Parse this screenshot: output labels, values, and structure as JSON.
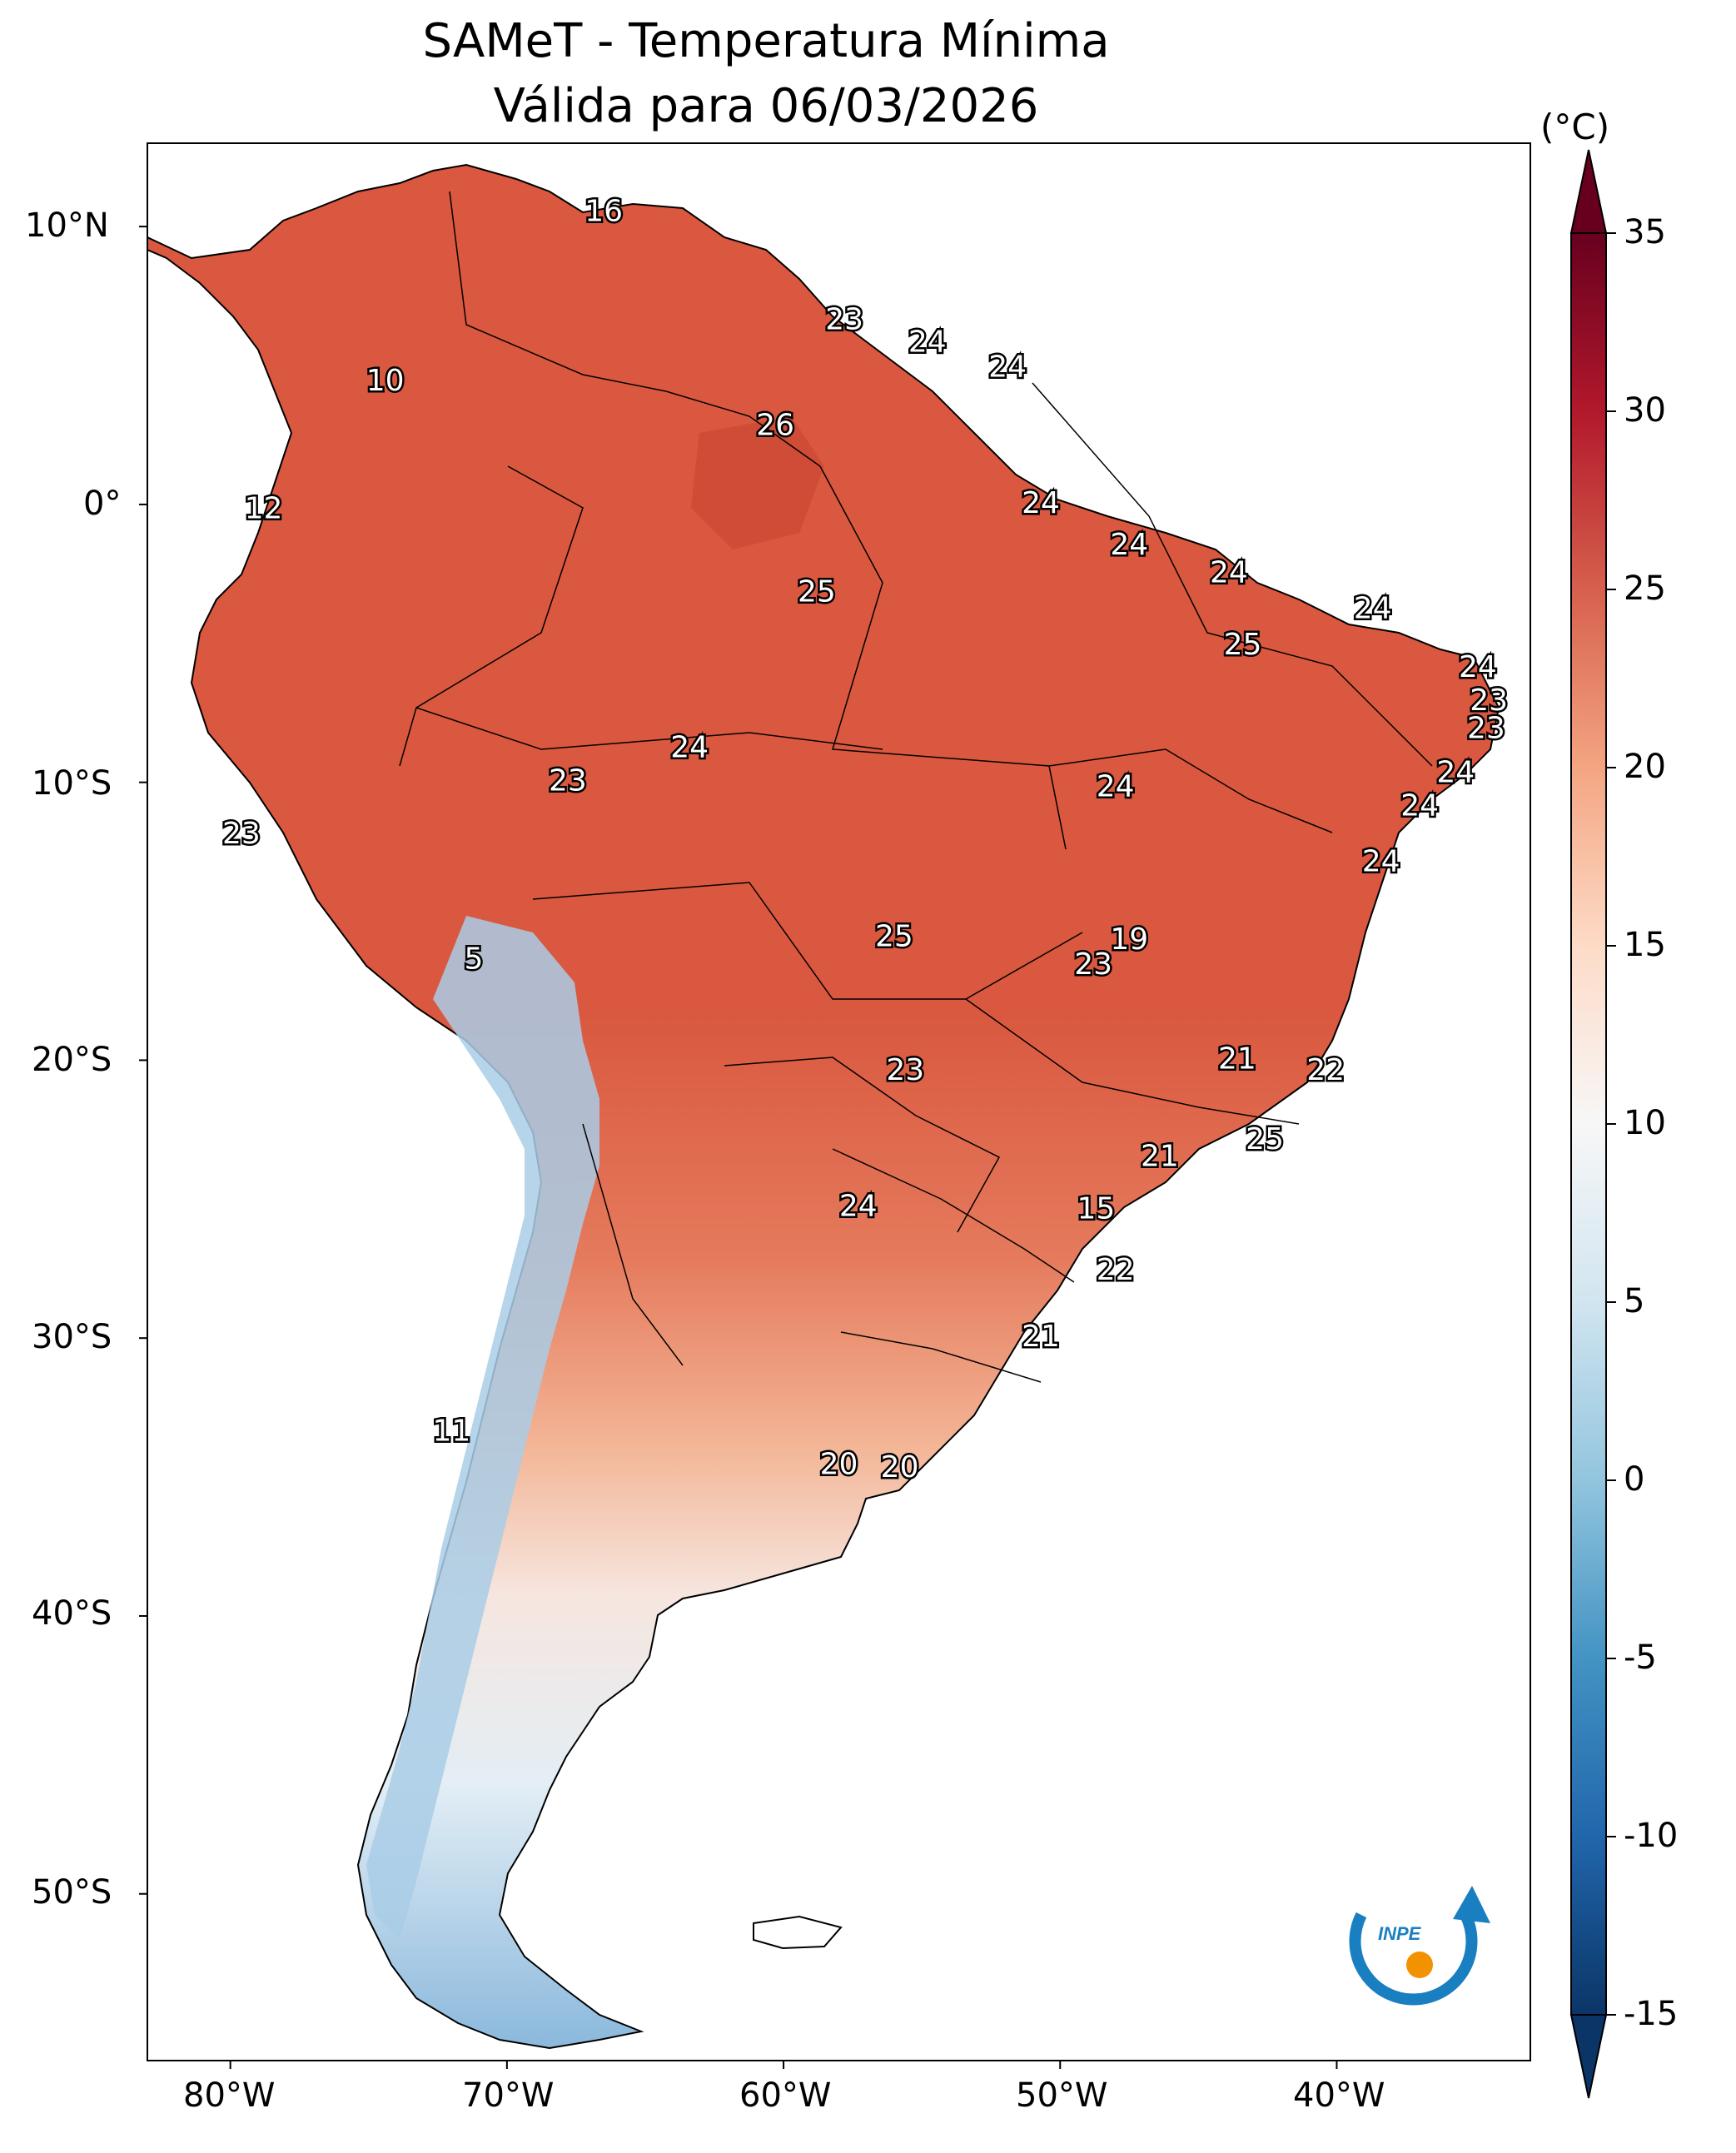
{
  "title": {
    "line1": "SAMeT - Temperatura Mínima",
    "line2": "Válida para 06/03/2026"
  },
  "colorbar": {
    "unit": "(°C)",
    "ticks": [
      "35",
      "30",
      "25",
      "20",
      "15",
      "10",
      "5",
      "0",
      "-5",
      "-10",
      "-15"
    ],
    "range": [
      -15,
      35
    ]
  },
  "axes": {
    "lat_labels": [
      "10°N",
      "0°",
      "10°S",
      "20°S",
      "30°S",
      "40°S",
      "50°S"
    ],
    "lon_labels": [
      "80°W",
      "70°W",
      "60°W",
      "50°W",
      "40°W"
    ]
  },
  "logo": {
    "text": "INPE"
  },
  "colors": {
    "warm": "#d9583f",
    "hot": "#c0392b",
    "mild": "#f0a27a",
    "neutral": "#f4f4f4",
    "cold": "#6fa8d6",
    "very_cold": "#2a6fb0",
    "logo_blue": "#1a7fc1",
    "logo_orange": "#f39200"
  },
  "chart_data": {
    "type": "map",
    "title": "SAMeT - Temperatura Mínima / Válida para 06/03/2026",
    "variable": "Minimum temperature (°C)",
    "lon_range": [
      -83,
      -33
    ],
    "lat_range": [
      -56,
      13
    ],
    "annotations": [
      {
        "lon": -66.5,
        "lat": 10.5,
        "value": "16"
      },
      {
        "lon": -74.4,
        "lat": 4.4,
        "value": "10"
      },
      {
        "lon": -57.8,
        "lat": 6.6,
        "value": "23"
      },
      {
        "lon": -54.8,
        "lat": 5.8,
        "value": "24"
      },
      {
        "lon": -51.9,
        "lat": 4.9,
        "value": "24"
      },
      {
        "lon": -60.3,
        "lat": 2.8,
        "value": "26"
      },
      {
        "lon": -78.8,
        "lat": -0.2,
        "value": "12"
      },
      {
        "lon": -50.7,
        "lat": 0.0,
        "value": "24"
      },
      {
        "lon": -47.5,
        "lat": -1.5,
        "value": "24"
      },
      {
        "lon": -43.9,
        "lat": -2.5,
        "value": "24"
      },
      {
        "lon": -58.8,
        "lat": -3.2,
        "value": "25"
      },
      {
        "lon": -38.7,
        "lat": -3.8,
        "value": "24"
      },
      {
        "lon": -43.4,
        "lat": -5.1,
        "value": "25"
      },
      {
        "lon": -34.9,
        "lat": -5.9,
        "value": "24"
      },
      {
        "lon": -34.5,
        "lat": -7.1,
        "value": "23"
      },
      {
        "lon": -34.6,
        "lat": -8.1,
        "value": "23"
      },
      {
        "lon": -63.4,
        "lat": -8.8,
        "value": "24"
      },
      {
        "lon": -35.7,
        "lat": -9.7,
        "value": "24"
      },
      {
        "lon": -67.8,
        "lat": -10.0,
        "value": "23"
      },
      {
        "lon": -48.0,
        "lat": -10.2,
        "value": "24"
      },
      {
        "lon": -37.0,
        "lat": -10.9,
        "value": "24"
      },
      {
        "lon": -79.6,
        "lat": -11.9,
        "value": "23"
      },
      {
        "lon": -38.4,
        "lat": -12.9,
        "value": "24"
      },
      {
        "lon": -56.0,
        "lat": -15.6,
        "value": "25"
      },
      {
        "lon": -47.5,
        "lat": -15.7,
        "value": "19"
      },
      {
        "lon": -48.8,
        "lat": -16.6,
        "value": "23"
      },
      {
        "lon": -71.2,
        "lat": -16.4,
        "value": "5"
      },
      {
        "lon": -43.6,
        "lat": -20.0,
        "value": "21"
      },
      {
        "lon": -40.4,
        "lat": -20.4,
        "value": "22"
      },
      {
        "lon": -55.6,
        "lat": -20.4,
        "value": "23"
      },
      {
        "lon": -42.6,
        "lat": -22.9,
        "value": "25"
      },
      {
        "lon": -46.4,
        "lat": -23.5,
        "value": "21"
      },
      {
        "lon": -57.3,
        "lat": -25.3,
        "value": "24"
      },
      {
        "lon": -48.7,
        "lat": -25.4,
        "value": "15"
      },
      {
        "lon": -48.0,
        "lat": -27.6,
        "value": "22"
      },
      {
        "lon": -50.7,
        "lat": -30.0,
        "value": "21"
      },
      {
        "lon": -72.0,
        "lat": -33.4,
        "value": "11"
      },
      {
        "lon": -58.0,
        "lat": -34.6,
        "value": "20"
      },
      {
        "lon": -55.8,
        "lat": -34.7,
        "value": "20"
      }
    ]
  }
}
